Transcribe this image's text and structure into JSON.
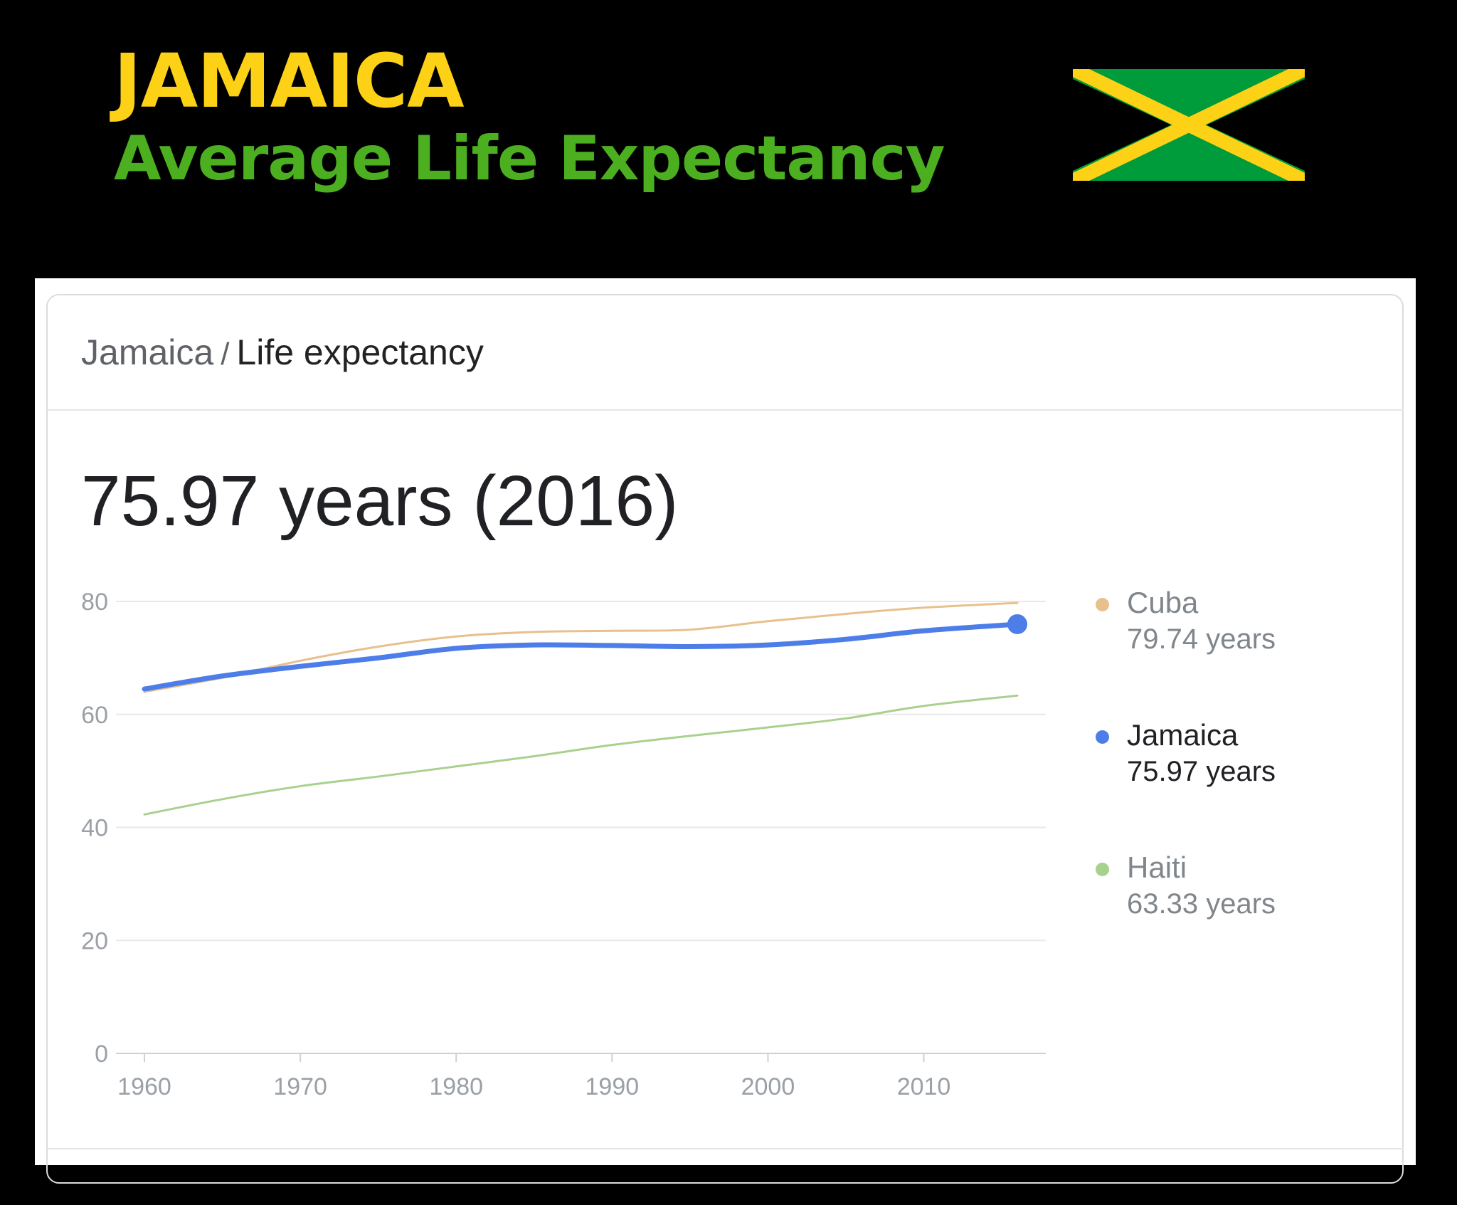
{
  "header": {
    "title": "JAMAICA",
    "subtitle": "Average Life Expectancy"
  },
  "flag": {
    "colors": {
      "green": "#009b3a",
      "gold": "#fcd116",
      "black": "#000000"
    }
  },
  "card": {
    "breadcrumb_country": "Jamaica",
    "breadcrumb_separator": "/",
    "breadcrumb_topic": "Life expectancy",
    "headline": "75.97 years (2016)"
  },
  "legend": [
    {
      "name": "Cuba",
      "value": "79.74 years",
      "color": "#e8c08d",
      "active": false
    },
    {
      "name": "Jamaica",
      "value": "75.97 years",
      "color": "#4d7de8",
      "active": true
    },
    {
      "name": "Haiti",
      "value": "63.33 years",
      "color": "#a9d18e",
      "active": false
    }
  ],
  "chart_data": {
    "type": "line",
    "xlim": [
      1960,
      2016
    ],
    "ylim": [
      0,
      80
    ],
    "xticks": [
      1960,
      1970,
      1980,
      1990,
      2000,
      2010
    ],
    "yticks": [
      0,
      20,
      40,
      60,
      80
    ],
    "grid": true,
    "legend_position": "right",
    "series": [
      {
        "name": "Cuba",
        "color": "#e8c08d",
        "points": [
          [
            1960,
            64
          ],
          [
            1965,
            66.5
          ],
          [
            1970,
            69.5
          ],
          [
            1975,
            72
          ],
          [
            1980,
            73.8
          ],
          [
            1985,
            74.6
          ],
          [
            1990,
            74.8
          ],
          [
            1995,
            75
          ],
          [
            2000,
            76.5
          ],
          [
            2005,
            77.8
          ],
          [
            2010,
            78.9
          ],
          [
            2016,
            79.74
          ]
        ]
      },
      {
        "name": "Jamaica",
        "color": "#4d7de8",
        "points": [
          [
            1960,
            64.5
          ],
          [
            1965,
            66.8
          ],
          [
            1970,
            68.5
          ],
          [
            1975,
            70
          ],
          [
            1980,
            71.7
          ],
          [
            1985,
            72.3
          ],
          [
            1990,
            72.2
          ],
          [
            1995,
            72
          ],
          [
            2000,
            72.3
          ],
          [
            2005,
            73.3
          ],
          [
            2010,
            74.8
          ],
          [
            2016,
            75.97
          ]
        ]
      },
      {
        "name": "Haiti",
        "color": "#a9d18e",
        "points": [
          [
            1960,
            42.3
          ],
          [
            1965,
            45
          ],
          [
            1970,
            47.3
          ],
          [
            1975,
            49
          ],
          [
            1980,
            50.8
          ],
          [
            1985,
            52.6
          ],
          [
            1990,
            54.6
          ],
          [
            1995,
            56.2
          ],
          [
            2000,
            57.7
          ],
          [
            2005,
            59.3
          ],
          [
            2010,
            61.5
          ],
          [
            2016,
            63.33
          ]
        ]
      }
    ]
  }
}
